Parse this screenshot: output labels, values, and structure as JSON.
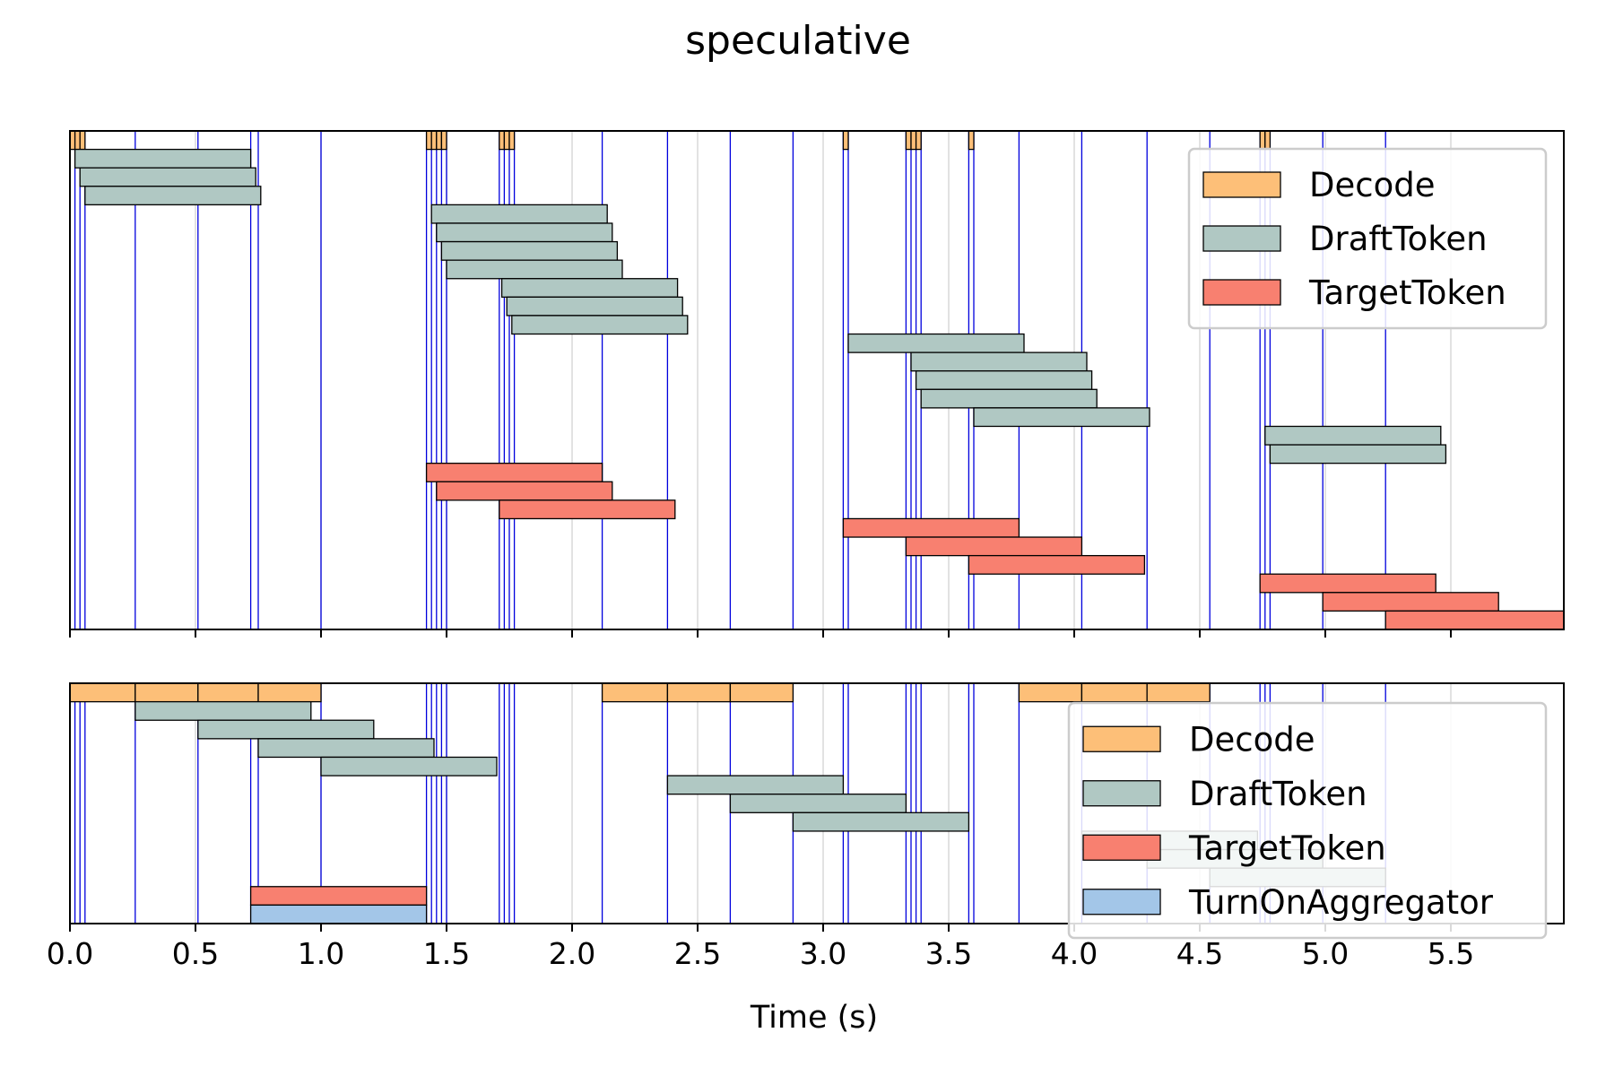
{
  "chart_data": {
    "type": "gantt",
    "title": "speculative",
    "xlabel": "Time (s)",
    "xlim": [
      0,
      5.95
    ],
    "x_ticks": [
      0.0,
      0.5,
      1.0,
      1.5,
      2.0,
      2.5,
      3.0,
      3.5,
      4.0,
      4.5,
      5.0,
      5.5
    ],
    "x_tick_labels": [
      "0.0",
      "0.5",
      "1.0",
      "1.5",
      "2.0",
      "2.5",
      "3.0",
      "3.5",
      "4.0",
      "4.5",
      "5.0",
      "5.5"
    ],
    "grid": "vertical",
    "colors": {
      "Decode": "#fdbf78",
      "DraftToken": "#b0c8c3",
      "TargetToken": "#f88070",
      "TurnOnAggregator": "#a3c6e8",
      "vline": "#0000dd",
      "grid": "#d9d9d9"
    },
    "panels": [
      {
        "legend": [
          "Decode",
          "DraftToken",
          "TargetToken"
        ],
        "legend_loc": "upper right",
        "n_rows": 27,
        "vlines": [
          0.0,
          0.02,
          0.04,
          0.06,
          0.26,
          0.51,
          0.72,
          0.75,
          1.0,
          1.42,
          1.44,
          1.46,
          1.48,
          1.5,
          1.71,
          1.73,
          1.75,
          1.77,
          2.12,
          2.38,
          2.63,
          2.88,
          3.08,
          3.1,
          3.33,
          3.35,
          3.37,
          3.39,
          3.58,
          3.6,
          3.78,
          4.03,
          4.29,
          4.54,
          4.74,
          4.76,
          4.78,
          4.99,
          5.24
        ],
        "bars": [
          {
            "kind": "Decode",
            "row": 0,
            "start": 0.0,
            "end": 0.02
          },
          {
            "kind": "Decode",
            "row": 0,
            "start": 0.02,
            "end": 0.04
          },
          {
            "kind": "Decode",
            "row": 0,
            "start": 0.04,
            "end": 0.06
          },
          {
            "kind": "Decode",
            "row": 0,
            "start": 1.42,
            "end": 1.44
          },
          {
            "kind": "Decode",
            "row": 0,
            "start": 1.44,
            "end": 1.46
          },
          {
            "kind": "Decode",
            "row": 0,
            "start": 1.46,
            "end": 1.48
          },
          {
            "kind": "Decode",
            "row": 0,
            "start": 1.48,
            "end": 1.5
          },
          {
            "kind": "Decode",
            "row": 0,
            "start": 1.71,
            "end": 1.73
          },
          {
            "kind": "Decode",
            "row": 0,
            "start": 1.73,
            "end": 1.75
          },
          {
            "kind": "Decode",
            "row": 0,
            "start": 1.75,
            "end": 1.77
          },
          {
            "kind": "Decode",
            "row": 0,
            "start": 3.08,
            "end": 3.1
          },
          {
            "kind": "Decode",
            "row": 0,
            "start": 3.33,
            "end": 3.35
          },
          {
            "kind": "Decode",
            "row": 0,
            "start": 3.35,
            "end": 3.37
          },
          {
            "kind": "Decode",
            "row": 0,
            "start": 3.37,
            "end": 3.39
          },
          {
            "kind": "Decode",
            "row": 0,
            "start": 3.58,
            "end": 3.6
          },
          {
            "kind": "Decode",
            "row": 0,
            "start": 4.74,
            "end": 4.76
          },
          {
            "kind": "Decode",
            "row": 0,
            "start": 4.76,
            "end": 4.78
          },
          {
            "kind": "DraftToken",
            "row": 1,
            "start": 0.02,
            "end": 0.72
          },
          {
            "kind": "DraftToken",
            "row": 2,
            "start": 0.04,
            "end": 0.74
          },
          {
            "kind": "DraftToken",
            "row": 3,
            "start": 0.06,
            "end": 0.76
          },
          {
            "kind": "DraftToken",
            "row": 4,
            "start": 1.44,
            "end": 2.14
          },
          {
            "kind": "DraftToken",
            "row": 5,
            "start": 1.46,
            "end": 2.16
          },
          {
            "kind": "DraftToken",
            "row": 6,
            "start": 1.48,
            "end": 2.18
          },
          {
            "kind": "DraftToken",
            "row": 7,
            "start": 1.5,
            "end": 2.2
          },
          {
            "kind": "DraftToken",
            "row": 8,
            "start": 1.72,
            "end": 2.42
          },
          {
            "kind": "DraftToken",
            "row": 9,
            "start": 1.74,
            "end": 2.44
          },
          {
            "kind": "DraftToken",
            "row": 10,
            "start": 1.76,
            "end": 2.46
          },
          {
            "kind": "DraftToken",
            "row": 11,
            "start": 3.1,
            "end": 3.8
          },
          {
            "kind": "DraftToken",
            "row": 12,
            "start": 3.35,
            "end": 4.05
          },
          {
            "kind": "DraftToken",
            "row": 13,
            "start": 3.37,
            "end": 4.07
          },
          {
            "kind": "DraftToken",
            "row": 14,
            "start": 3.39,
            "end": 4.09
          },
          {
            "kind": "DraftToken",
            "row": 15,
            "start": 3.6,
            "end": 4.3
          },
          {
            "kind": "DraftToken",
            "row": 16,
            "start": 4.76,
            "end": 5.46
          },
          {
            "kind": "DraftToken",
            "row": 17,
            "start": 4.78,
            "end": 5.48
          },
          {
            "kind": "TargetToken",
            "row": 18,
            "start": 1.42,
            "end": 2.12
          },
          {
            "kind": "TargetToken",
            "row": 19,
            "start": 1.46,
            "end": 2.16
          },
          {
            "kind": "TargetToken",
            "row": 20,
            "start": 1.71,
            "end": 2.41
          },
          {
            "kind": "TargetToken",
            "row": 21,
            "start": 3.08,
            "end": 3.78
          },
          {
            "kind": "TargetToken",
            "row": 22,
            "start": 3.33,
            "end": 4.03
          },
          {
            "kind": "TargetToken",
            "row": 23,
            "start": 3.58,
            "end": 4.28
          },
          {
            "kind": "TargetToken",
            "row": 24,
            "start": 4.74,
            "end": 5.44
          },
          {
            "kind": "TargetToken",
            "row": 25,
            "start": 4.99,
            "end": 5.69
          },
          {
            "kind": "TargetToken",
            "row": 26,
            "start": 5.24,
            "end": 5.95
          }
        ]
      },
      {
        "legend": [
          "Decode",
          "DraftToken",
          "TargetToken",
          "TurnOnAggregator"
        ],
        "legend_loc": "lower right",
        "n_rows": 13,
        "vlines": [
          0.0,
          0.02,
          0.04,
          0.06,
          0.26,
          0.51,
          0.72,
          0.75,
          1.0,
          1.42,
          1.44,
          1.46,
          1.48,
          1.5,
          1.71,
          1.73,
          1.75,
          1.77,
          2.12,
          2.38,
          2.63,
          2.88,
          3.08,
          3.1,
          3.33,
          3.35,
          3.37,
          3.39,
          3.58,
          3.6,
          3.78,
          4.03,
          4.29,
          4.54,
          4.74,
          4.76,
          4.78,
          4.99,
          5.24
        ],
        "bars": [
          {
            "kind": "Decode",
            "row": 0,
            "start": 0.0,
            "end": 0.26
          },
          {
            "kind": "Decode",
            "row": 0,
            "start": 0.26,
            "end": 0.51
          },
          {
            "kind": "Decode",
            "row": 0,
            "start": 0.51,
            "end": 0.75
          },
          {
            "kind": "Decode",
            "row": 0,
            "start": 0.75,
            "end": 1.0
          },
          {
            "kind": "Decode",
            "row": 0,
            "start": 2.12,
            "end": 2.38
          },
          {
            "kind": "Decode",
            "row": 0,
            "start": 2.38,
            "end": 2.63
          },
          {
            "kind": "Decode",
            "row": 0,
            "start": 2.63,
            "end": 2.88
          },
          {
            "kind": "Decode",
            "row": 0,
            "start": 3.78,
            "end": 4.03
          },
          {
            "kind": "Decode",
            "row": 0,
            "start": 4.03,
            "end": 4.29
          },
          {
            "kind": "Decode",
            "row": 0,
            "start": 4.29,
            "end": 4.54
          },
          {
            "kind": "DraftToken",
            "row": 1,
            "start": 0.26,
            "end": 0.96
          },
          {
            "kind": "DraftToken",
            "row": 2,
            "start": 0.51,
            "end": 1.21
          },
          {
            "kind": "DraftToken",
            "row": 3,
            "start": 0.75,
            "end": 1.45
          },
          {
            "kind": "DraftToken",
            "row": 4,
            "start": 1.0,
            "end": 1.7
          },
          {
            "kind": "DraftToken",
            "row": 5,
            "start": 2.38,
            "end": 3.08
          },
          {
            "kind": "DraftToken",
            "row": 6,
            "start": 2.63,
            "end": 3.33
          },
          {
            "kind": "DraftToken",
            "row": 7,
            "start": 2.88,
            "end": 3.58
          },
          {
            "kind": "DraftToken",
            "row": 8,
            "start": 4.03,
            "end": 4.73
          },
          {
            "kind": "DraftToken",
            "row": 9,
            "start": 4.29,
            "end": 4.99
          },
          {
            "kind": "DraftToken",
            "row": 10,
            "start": 4.54,
            "end": 5.24
          },
          {
            "kind": "TargetToken",
            "row": 11,
            "start": 0.72,
            "end": 1.42
          },
          {
            "kind": "TurnOnAggregator",
            "row": 12,
            "start": 0.72,
            "end": 1.42
          }
        ]
      }
    ]
  }
}
